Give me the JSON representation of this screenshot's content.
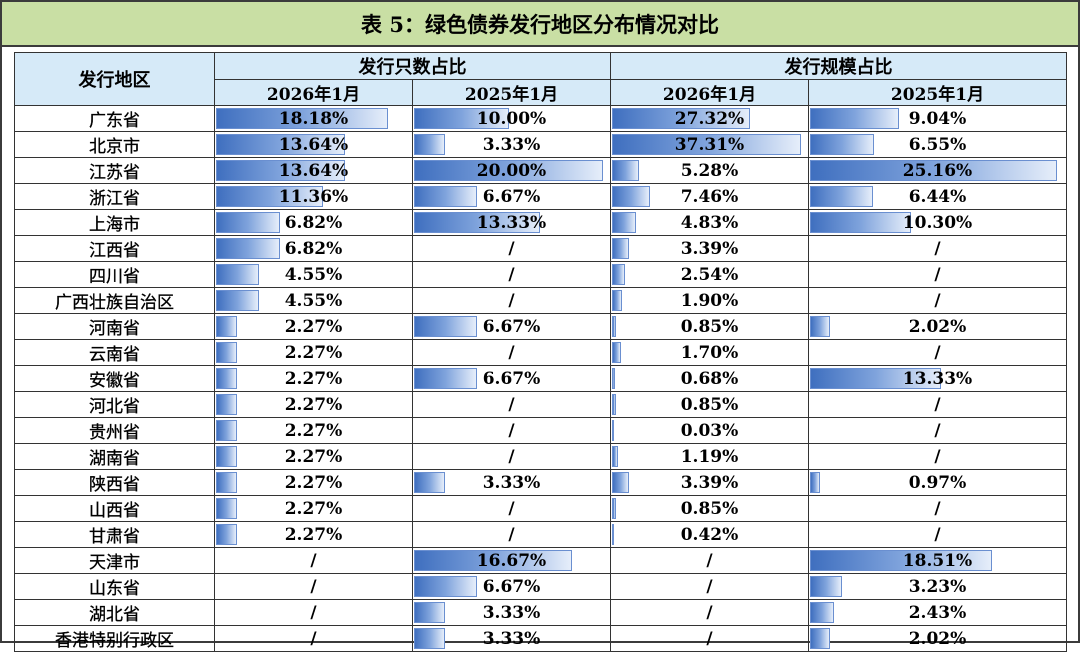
{
  "title": "表 5：绿色债券发行地区分布情况对比",
  "headers": {
    "region": "发行地区",
    "group_count": "发行只数占比",
    "group_scale": "发行规模占比",
    "period_2026": "2026年1月",
    "period_2025": "2025年1月"
  },
  "rows": [
    {
      "region": "广东省",
      "c26": "18.18%",
      "c25": "10.00%",
      "s26": "27.32%",
      "s25": "9.04%"
    },
    {
      "region": "北京市",
      "c26": "13.64%",
      "c25": "3.33%",
      "s26": "37.31%",
      "s25": "6.55%"
    },
    {
      "region": "江苏省",
      "c26": "13.64%",
      "c25": "20.00%",
      "s26": "5.28%",
      "s25": "25.16%"
    },
    {
      "region": "浙江省",
      "c26": "11.36%",
      "c25": "6.67%",
      "s26": "7.46%",
      "s25": "6.44%"
    },
    {
      "region": "上海市",
      "c26": "6.82%",
      "c25": "13.33%",
      "s26": "4.83%",
      "s25": "10.30%"
    },
    {
      "region": "江西省",
      "c26": "6.82%",
      "c25": "/",
      "s26": "3.39%",
      "s25": "/"
    },
    {
      "region": "四川省",
      "c26": "4.55%",
      "c25": "/",
      "s26": "2.54%",
      "s25": "/"
    },
    {
      "region": "广西壮族自治区",
      "c26": "4.55%",
      "c25": "/",
      "s26": "1.90%",
      "s25": "/"
    },
    {
      "region": "河南省",
      "c26": "2.27%",
      "c25": "6.67%",
      "s26": "0.85%",
      "s25": "2.02%"
    },
    {
      "region": "云南省",
      "c26": "2.27%",
      "c25": "/",
      "s26": "1.70%",
      "s25": "/"
    },
    {
      "region": "安徽省",
      "c26": "2.27%",
      "c25": "6.67%",
      "s26": "0.68%",
      "s25": "13.33%"
    },
    {
      "region": "河北省",
      "c26": "2.27%",
      "c25": "/",
      "s26": "0.85%",
      "s25": "/"
    },
    {
      "region": "贵州省",
      "c26": "2.27%",
      "c25": "/",
      "s26": "0.03%",
      "s25": "/"
    },
    {
      "region": "湖南省",
      "c26": "2.27%",
      "c25": "/",
      "s26": "1.19%",
      "s25": "/"
    },
    {
      "region": "陕西省",
      "c26": "2.27%",
      "c25": "3.33%",
      "s26": "3.39%",
      "s25": "0.97%"
    },
    {
      "region": "山西省",
      "c26": "2.27%",
      "c25": "/",
      "s26": "0.85%",
      "s25": "/"
    },
    {
      "region": "甘肃省",
      "c26": "2.27%",
      "c25": "/",
      "s26": "0.42%",
      "s25": "/"
    },
    {
      "region": "天津市",
      "c26": "/",
      "c25": "16.67%",
      "s26": "/",
      "s25": "18.51%"
    },
    {
      "region": "山东省",
      "c26": "/",
      "c25": "6.67%",
      "s26": "/",
      "s25": "3.23%"
    },
    {
      "region": "湖北省",
      "c26": "/",
      "c25": "3.33%",
      "s26": "/",
      "s25": "2.43%"
    },
    {
      "region": "香港特别行政区",
      "c26": "/",
      "c25": "3.33%",
      "s26": "/",
      "s25": "2.02%"
    }
  ],
  "bar_max": {
    "c26": 20,
    "c25": 20,
    "s26": 37.31,
    "s25": 25.16
  },
  "colors": {
    "title_bg": "#c9dfa4",
    "header_bg": "#d6eaf8",
    "bar": "#3f6fbf"
  }
}
